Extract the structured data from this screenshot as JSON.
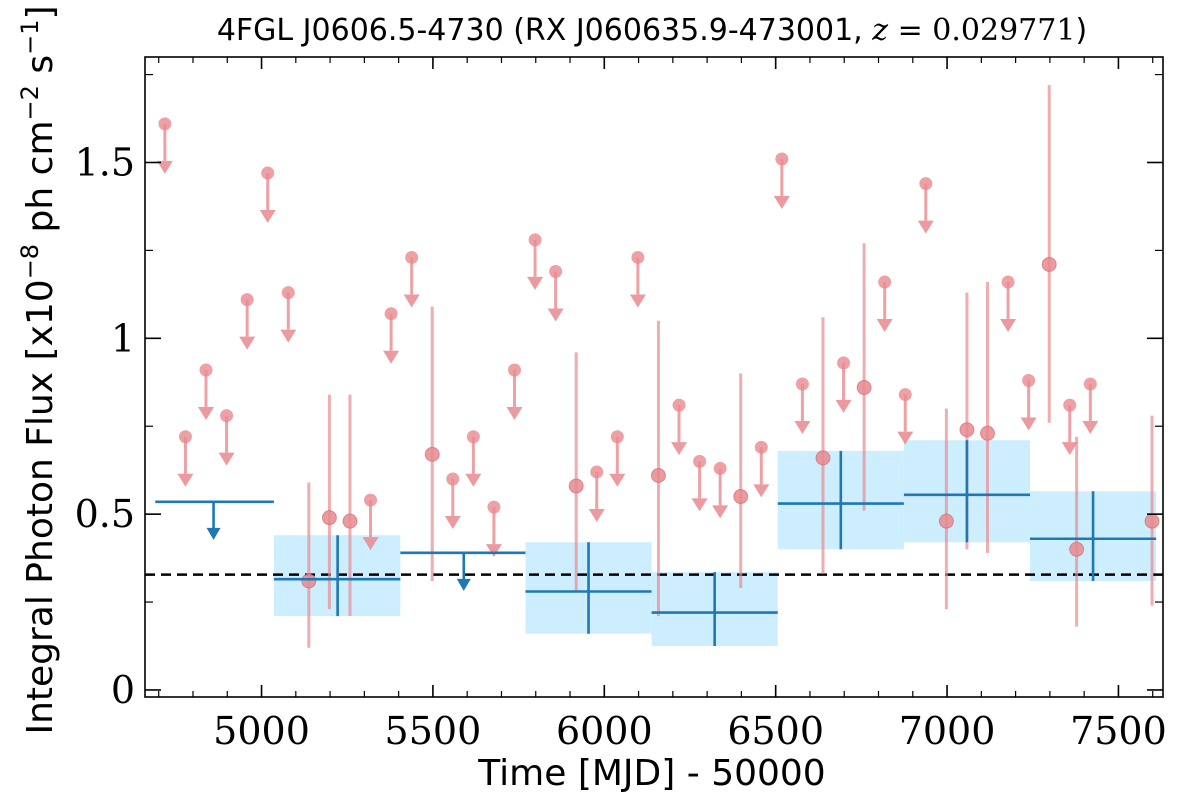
{
  "chart_data": {
    "type": "scatter",
    "title": {
      "main": "4FGL J0606.5-4730 (RX J060635.9-473001, ",
      "z_symbol": "z",
      "equals": " = ",
      "z_value": "0.029771",
      "close": ")"
    },
    "xlabel": "Time [MJD] - 50000",
    "ylabel": {
      "pre": "Integral Photon Flux [x10",
      "exp1": "−8",
      "mid": " ph cm",
      "exp2": "−2",
      "mid2": " s",
      "exp3": "−1",
      "post": "]"
    },
    "xlim": [
      4660,
      7630
    ],
    "ylim": [
      -0.02,
      1.8
    ],
    "x_ticks": [
      5000,
      5500,
      6000,
      6500,
      7000,
      7500
    ],
    "x_tick_labels": [
      "5000",
      "5500",
      "6000",
      "6500",
      "7000",
      "7500"
    ],
    "y_ticks": [
      0,
      0.5,
      1,
      1.5
    ],
    "y_tick_labels": [
      "0",
      "0.5",
      "1",
      "1.5"
    ],
    "reference_line": {
      "y": 0.328,
      "style": "dashed",
      "color": "#000000"
    },
    "colors": {
      "short_bins": "#e88a8e",
      "long_bins": "#1f77b4",
      "error_band": "#cceeff"
    },
    "series": [
      {
        "kind": "upper_limits_short",
        "points": [
          {
            "x": 4718,
            "y": 1.61
          },
          {
            "x": 4778,
            "y": 0.72
          },
          {
            "x": 4838,
            "y": 0.91
          },
          {
            "x": 4898,
            "y": 0.78
          },
          {
            "x": 4958,
            "y": 1.11
          },
          {
            "x": 5018,
            "y": 1.47
          },
          {
            "x": 5078,
            "y": 1.13
          },
          {
            "x": 5318,
            "y": 0.54
          },
          {
            "x": 5378,
            "y": 1.07
          },
          {
            "x": 5438,
            "y": 1.23
          },
          {
            "x": 5558,
            "y": 0.6
          },
          {
            "x": 5618,
            "y": 0.72
          },
          {
            "x": 5678,
            "y": 0.52
          },
          {
            "x": 5738,
            "y": 0.91
          },
          {
            "x": 5798,
            "y": 1.28
          },
          {
            "x": 5858,
            "y": 1.19
          },
          {
            "x": 5978,
            "y": 0.62
          },
          {
            "x": 6038,
            "y": 0.72
          },
          {
            "x": 6098,
            "y": 1.23
          },
          {
            "x": 6218,
            "y": 0.81
          },
          {
            "x": 6278,
            "y": 0.65
          },
          {
            "x": 6338,
            "y": 0.63
          },
          {
            "x": 6458,
            "y": 0.69
          },
          {
            "x": 6518,
            "y": 1.51
          },
          {
            "x": 6578,
            "y": 0.87
          },
          {
            "x": 6698,
            "y": 0.93
          },
          {
            "x": 6818,
            "y": 1.16
          },
          {
            "x": 6878,
            "y": 0.84
          },
          {
            "x": 6938,
            "y": 1.44
          },
          {
            "x": 7178,
            "y": 1.16
          },
          {
            "x": 7238,
            "y": 0.88
          },
          {
            "x": 7358,
            "y": 0.81
          },
          {
            "x": 7418,
            "y": 0.87
          }
        ]
      },
      {
        "kind": "detections_short",
        "points": [
          {
            "x": 5138,
            "y": 0.31,
            "ylo": 0.12,
            "yhi": 0.59
          },
          {
            "x": 5198,
            "y": 0.49,
            "ylo": 0.23,
            "yhi": 0.84
          },
          {
            "x": 5258,
            "y": 0.48,
            "ylo": 0.21,
            "yhi": 0.84
          },
          {
            "x": 5498,
            "y": 0.67,
            "ylo": 0.31,
            "yhi": 1.09
          },
          {
            "x": 5918,
            "y": 0.58,
            "ylo": 0.28,
            "yhi": 0.96
          },
          {
            "x": 6158,
            "y": 0.61,
            "ylo": 0.21,
            "yhi": 1.05
          },
          {
            "x": 6398,
            "y": 0.55,
            "ylo": 0.29,
            "yhi": 0.9
          },
          {
            "x": 6638,
            "y": 0.66,
            "ylo": 0.33,
            "yhi": 1.06
          },
          {
            "x": 6758,
            "y": 0.86,
            "ylo": 0.51,
            "yhi": 1.27
          },
          {
            "x": 6998,
            "y": 0.48,
            "ylo": 0.23,
            "yhi": 0.8
          },
          {
            "x": 7058,
            "y": 0.74,
            "ylo": 0.4,
            "yhi": 1.13
          },
          {
            "x": 7118,
            "y": 0.73,
            "ylo": 0.39,
            "yhi": 1.16
          },
          {
            "x": 7298,
            "y": 1.21,
            "ylo": 0.76,
            "yhi": 1.72
          },
          {
            "x": 7378,
            "y": 0.4,
            "ylo": 0.18,
            "yhi": 0.72
          },
          {
            "x": 7598,
            "y": 0.48,
            "ylo": 0.24,
            "yhi": 0.78
          }
        ]
      },
      {
        "kind": "upper_limits_long",
        "points": [
          {
            "x": 4860,
            "y": 0.535,
            "x0": 4690,
            "x1": 5036
          },
          {
            "x": 5590,
            "y": 0.39,
            "x0": 5405,
            "x1": 5770
          }
        ]
      },
      {
        "kind": "detections_long",
        "points": [
          {
            "x": 5222,
            "y": 0.315,
            "x0": 5036,
            "x1": 5405,
            "ylo": 0.21,
            "yhi": 0.44
          },
          {
            "x": 5954,
            "y": 0.28,
            "x0": 5770,
            "x1": 6138,
            "ylo": 0.16,
            "yhi": 0.42
          },
          {
            "x": 6322,
            "y": 0.22,
            "x0": 6138,
            "x1": 6506,
            "ylo": 0.125,
            "yhi": 0.335
          },
          {
            "x": 6690,
            "y": 0.53,
            "x0": 6506,
            "x1": 6874,
            "ylo": 0.4,
            "yhi": 0.68
          },
          {
            "x": 7058,
            "y": 0.555,
            "x0": 6874,
            "x1": 7242,
            "ylo": 0.42,
            "yhi": 0.71
          },
          {
            "x": 7426,
            "y": 0.43,
            "x0": 7242,
            "x1": 7610,
            "ylo": 0.31,
            "yhi": 0.565
          }
        ]
      }
    ]
  }
}
